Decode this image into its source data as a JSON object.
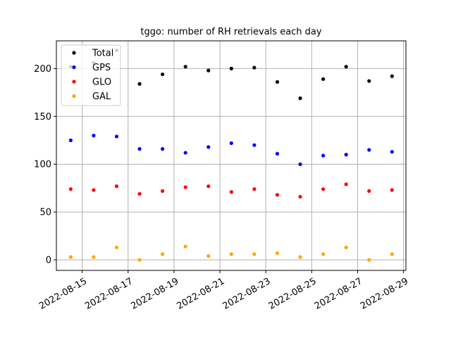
{
  "chart_data": {
    "type": "scatter",
    "title": "tggo: number of RH retrievals each day",
    "xlabel": "",
    "ylabel": "",
    "x": [
      "2022-08-14",
      "2022-08-15",
      "2022-08-16",
      "2022-08-17",
      "2022-08-18",
      "2022-08-19",
      "2022-08-20",
      "2022-08-21",
      "2022-08-22",
      "2022-08-23",
      "2022-08-24",
      "2022-08-25",
      "2022-08-26",
      "2022-08-27",
      "2022-08-28"
    ],
    "xlim": [
      "2022-08-13T21:00",
      "2022-08-29T02:30"
    ],
    "ylim": [
      -11,
      229
    ],
    "x_ticks": [
      "2022-08-15",
      "2022-08-17",
      "2022-08-19",
      "2022-08-21",
      "2022-08-23",
      "2022-08-25",
      "2022-08-27",
      "2022-08-29"
    ],
    "y_ticks": [
      0,
      50,
      100,
      150,
      200
    ],
    "grid": true,
    "legend_position": "upper-left",
    "series": [
      {
        "name": "Total",
        "color": "#000000",
        "values": [
          202,
          206,
          219,
          184,
          194,
          202,
          198,
          200,
          201,
          186,
          169,
          189,
          202,
          187,
          192
        ]
      },
      {
        "name": "GPS",
        "color": "#0000ff",
        "values": [
          125,
          130,
          129,
          116,
          116,
          112,
          118,
          122,
          120,
          111,
          100,
          109,
          110,
          115,
          113
        ]
      },
      {
        "name": "GLO",
        "color": "#ff0000",
        "values": [
          74,
          73,
          77,
          69,
          72,
          76,
          77,
          71,
          74,
          68,
          66,
          74,
          79,
          72,
          73
        ]
      },
      {
        "name": "GAL",
        "color": "#ffa500",
        "values": [
          3,
          3,
          13,
          0,
          6,
          14,
          4,
          6,
          6,
          7,
          3,
          6,
          13,
          0,
          6
        ]
      }
    ]
  }
}
